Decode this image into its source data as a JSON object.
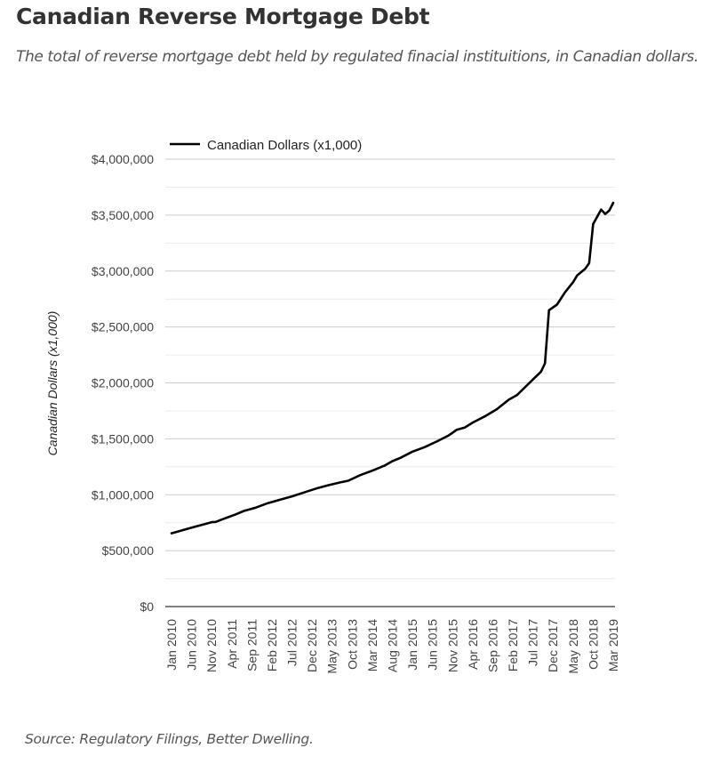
{
  "header": {
    "title": "Canadian Reverse Mortgage Debt",
    "subtitle": "The total of reverse mortgage debt held by regulated finacial instituitions, in Canadian dollars."
  },
  "footer": {
    "source": "Source: Regulatory Filings, Better Dwelling."
  },
  "chart_data": {
    "type": "line",
    "title": "Canadian Reverse Mortgage Debt",
    "xlabel": "",
    "ylabel": "Canadian Dollars (x1,000)",
    "ylim": [
      0,
      4000000
    ],
    "y_ticks": [
      0,
      500000,
      1000000,
      1500000,
      2000000,
      2500000,
      3000000,
      3500000,
      4000000
    ],
    "y_tick_labels": [
      "$0",
      "$500,000",
      "$1,000,000",
      "$1,500,000",
      "$2,000,000",
      "$2,500,000",
      "$3,000,000",
      "$3,500,000",
      "$4,000,000"
    ],
    "minor_grid_step": 250000,
    "grid": true,
    "legend": {
      "placement": "top-left",
      "entries": [
        "Canadian Dollars (x1,000)"
      ]
    },
    "x_tick_labels": [
      "Jan 2010",
      "Jun 2010",
      "Nov 2010",
      "Apr 2011",
      "Sep 2011",
      "Feb 2012",
      "Jul 2012",
      "Dec 2012",
      "May 2013",
      "Oct 2013",
      "Mar 2014",
      "Aug 2014",
      "Jan 2015",
      "Jun 2015",
      "Nov 2015",
      "Apr 2016",
      "Sep 2016",
      "Feb 2017",
      "Jul 2017",
      "Dec 2017",
      "May 2018",
      "Oct 2018",
      "Mar 2019"
    ],
    "x_start": "Jan 2010",
    "x_end": "Mar 2019",
    "x_unit": "month",
    "series": [
      {
        "name": "Canadian Dollars (x1,000)",
        "color": "#000000",
        "points": [
          [
            0,
            655000
          ],
          [
            2,
            675000
          ],
          [
            5,
            705000
          ],
          [
            8,
            735000
          ],
          [
            10,
            755000
          ],
          [
            11,
            757000
          ],
          [
            13,
            785000
          ],
          [
            16,
            825000
          ],
          [
            18,
            855000
          ],
          [
            21,
            885000
          ],
          [
            24,
            925000
          ],
          [
            27,
            955000
          ],
          [
            30,
            985000
          ],
          [
            33,
            1020000
          ],
          [
            36,
            1055000
          ],
          [
            39,
            1085000
          ],
          [
            42,
            1110000
          ],
          [
            44,
            1125000
          ],
          [
            47,
            1175000
          ],
          [
            50,
            1215000
          ],
          [
            53,
            1260000
          ],
          [
            55,
            1300000
          ],
          [
            57,
            1330000
          ],
          [
            60,
            1385000
          ],
          [
            63,
            1425000
          ],
          [
            66,
            1475000
          ],
          [
            69,
            1530000
          ],
          [
            71,
            1580000
          ],
          [
            73,
            1600000
          ],
          [
            75,
            1645000
          ],
          [
            78,
            1700000
          ],
          [
            81,
            1765000
          ],
          [
            84,
            1850000
          ],
          [
            86,
            1890000
          ],
          [
            88,
            1960000
          ],
          [
            90,
            2030000
          ],
          [
            92,
            2100000
          ],
          [
            93,
            2175000
          ],
          [
            94,
            2650000
          ],
          [
            96,
            2700000
          ],
          [
            98,
            2810000
          ],
          [
            100,
            2900000
          ],
          [
            101,
            2960000
          ],
          [
            103,
            3020000
          ],
          [
            104,
            3070000
          ],
          [
            105,
            3420000
          ],
          [
            107,
            3550000
          ],
          [
            108,
            3510000
          ],
          [
            109,
            3540000
          ],
          [
            110,
            3610000
          ]
        ]
      }
    ]
  }
}
